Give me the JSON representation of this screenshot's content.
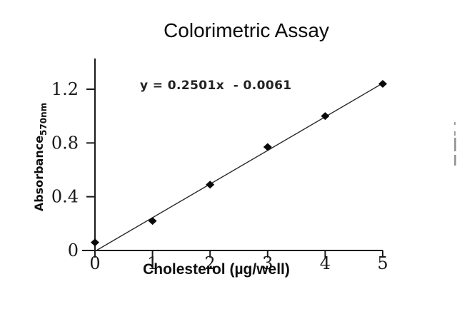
{
  "chart_data": {
    "type": "scatter",
    "title": "Colorimetric Assay",
    "equation_label": "y = 0.2501x  - 0.0061",
    "xlabel": "Cholesterol (µg/well)",
    "ylabel": "Absorbance",
    "ylabel_subscript": "570nm",
    "x": [
      0,
      1,
      2,
      3,
      4,
      5
    ],
    "y": [
      0.06,
      0.22,
      0.49,
      0.77,
      1.0,
      1.24
    ],
    "trendline": {
      "slope": 0.2501,
      "intercept": -0.0061,
      "x_start": 0,
      "x_end": 5
    },
    "xlim": [
      0,
      5
    ],
    "ylim": [
      0,
      1.2
    ],
    "x_ticks": [
      0,
      1,
      2,
      3,
      4,
      5
    ],
    "y_ticks": [
      0,
      0.4,
      0.8,
      1.2
    ],
    "marker": "diamond",
    "grid": false,
    "legend": null,
    "colors": {
      "axis": "#1a1a1a",
      "marker": "#0a0a0a",
      "trendline": "#2b2b2b",
      "text": "#111111"
    }
  },
  "edge_artifact": {
    "color": "#9e9e9e"
  }
}
